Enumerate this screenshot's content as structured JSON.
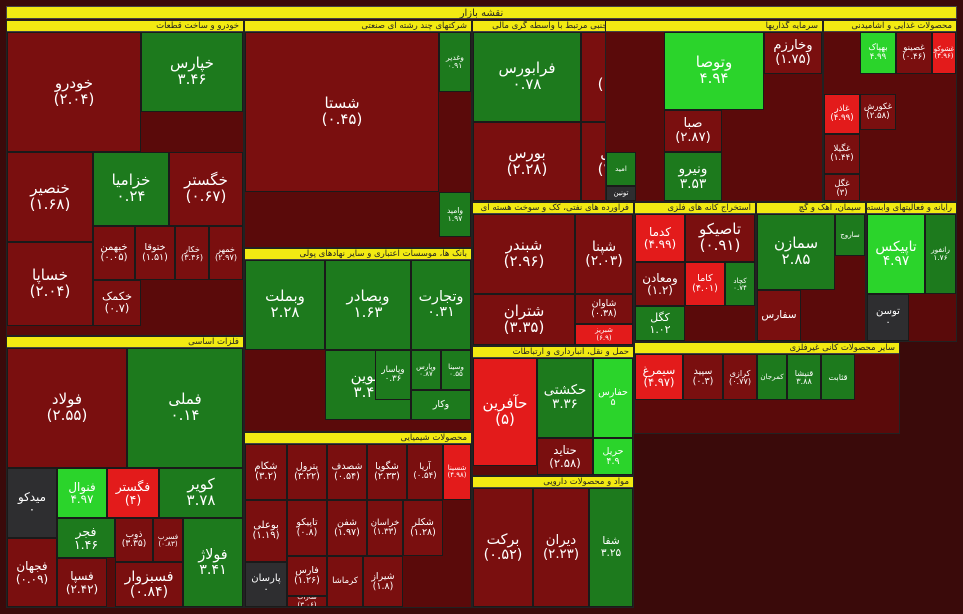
{
  "title": "نقشه بازار",
  "colors": {
    "strong_red": "#e31b1b",
    "dark_red": "#7a0f0f",
    "dark_green": "#1d7a1d",
    "bright_green": "#2bd42b",
    "neutral": "#2e2e30",
    "header": "#f2ea12"
  },
  "chart_data": {
    "type": "treemap",
    "sectors": [
      {
        "name": "خودرو و ساخت قطعات",
        "stocks": [
          {
            "name": "خودرو",
            "change": "(۲.۰۴)",
            "value": -2.04
          },
          {
            "name": "خپارس",
            "change": "۳.۴۶",
            "value": 3.46
          },
          {
            "name": "خنصیر",
            "change": "(۱.۶۸)",
            "value": -1.68
          },
          {
            "name": "خزامیا",
            "change": "۰.۲۴",
            "value": 0.24
          },
          {
            "name": "خگستر",
            "change": "(۰.۶۷)",
            "value": -0.67
          },
          {
            "name": "خساپا",
            "change": "(۲.۰۴)",
            "value": -2.04
          },
          {
            "name": "خبهمن",
            "change": "(۰.۰۵)",
            "value": -0.05
          },
          {
            "name": "ختوقا",
            "change": "(۱.۵۱)",
            "value": -1.51
          },
          {
            "name": "خکار",
            "change": "(۳.۴۶)",
            "value": -3.46
          },
          {
            "name": "خمهر",
            "change": "(۲.۹۷)",
            "value": -2.97
          },
          {
            "name": "خکمک",
            "change": "(۰.۷)",
            "value": -0.7
          }
        ]
      },
      {
        "name": "فلزات اساسی",
        "stocks": [
          {
            "name": "فولاد",
            "change": "(۲.۵۵)",
            "value": -2.55
          },
          {
            "name": "فملی",
            "change": "۰.۱۴",
            "value": 0.14
          },
          {
            "name": "میدکو",
            "change": "۰",
            "value": 0
          },
          {
            "name": "فنوال",
            "change": "۴.۹۷",
            "value": 4.97
          },
          {
            "name": "فگستر",
            "change": "(۴)",
            "value": -4
          },
          {
            "name": "کویر",
            "change": "۳.۷۸",
            "value": 3.78
          },
          {
            "name": "فجر",
            "change": "۱.۴۶",
            "value": 1.46
          },
          {
            "name": "فجهان",
            "change": "(۰.۰۹)",
            "value": -0.09
          },
          {
            "name": "ذوب",
            "change": "(۳.۳۵)",
            "value": -3.35
          },
          {
            "name": "فسرب",
            "change": "(۰.۸۳)",
            "value": -0.83
          },
          {
            "name": "فسپا",
            "change": "(۲.۴۲)",
            "value": -2.42
          },
          {
            "name": "فسبزوار",
            "change": "(۰.۸۴)",
            "value": -0.84
          },
          {
            "name": "فولاژ",
            "change": "۳.۴۱",
            "value": 3.41
          }
        ]
      },
      {
        "name": "شرکتهای چند رشته ای صنعتی",
        "stocks": [
          {
            "name": "شستا",
            "change": "(۰.۴۵)",
            "value": -0.45
          },
          {
            "name": "وغدیر",
            "change": "۰.۹۱",
            "value": 0.91
          },
          {
            "name": "وامید",
            "change": "۱.۹۷",
            "value": 1.97
          }
        ]
      },
      {
        "name": "بانک ها، موسسات اعتباری و سایر نهادهای پولی",
        "stocks": [
          {
            "name": "وبملت",
            "change": "۲.۲۸",
            "value": 2.28
          },
          {
            "name": "وبصادر",
            "change": "۱.۶۳",
            "value": 1.63
          },
          {
            "name": "وتجارت",
            "change": "۰.۳۱",
            "value": 0.31
          },
          {
            "name": "ونوین",
            "change": "۳.۴۱",
            "value": 3.41
          },
          {
            "name": "وپاسار",
            "change": "۰.۳۶",
            "value": 0.36
          },
          {
            "name": "وپارس",
            "change": "۰.۸۷",
            "value": 0.87
          },
          {
            "name": "وسینا",
            "change": "۰.۵۵",
            "value": 0.55
          },
          {
            "name": "وکار",
            "change": "",
            "value": 1.2
          },
          {
            "name": "وخاور",
            "change": "",
            "value": -0.9
          }
        ]
      },
      {
        "name": "محصولات شیمیایی",
        "stocks": [
          {
            "name": "شکام",
            "change": "(۳.۲)",
            "value": -3.2
          },
          {
            "name": "پترول",
            "change": "(۳.۲۲)",
            "value": -3.22
          },
          {
            "name": "شصدف",
            "change": "(۰.۵۴)",
            "value": -0.54
          },
          {
            "name": "شگویا",
            "change": "(۲.۳۳)",
            "value": -2.33
          },
          {
            "name": "آریا",
            "change": "(۰.۵۴)",
            "value": -0.54
          },
          {
            "name": "شسینا",
            "change": "(۴.۹۸)",
            "value": -4.98
          },
          {
            "name": "بوعلی",
            "change": "(۱.۱۹)",
            "value": -1.19
          },
          {
            "name": "تاپیکو",
            "change": "(۰.۸)",
            "value": -0.8
          },
          {
            "name": "شفن",
            "change": "(۱.۹۷)",
            "value": -1.97
          },
          {
            "name": "خراسان",
            "change": "(۱.۳۳)",
            "value": -1.33
          },
          {
            "name": "شکلر",
            "change": "(۱.۲۸)",
            "value": -1.28
          },
          {
            "name": "پارسان",
            "change": "۰",
            "value": 0
          },
          {
            "name": "فارس",
            "change": "(۱.۲۶)",
            "value": -1.26
          },
          {
            "name": "کرماشا",
            "change": "",
            "value": -1.1
          },
          {
            "name": "شاراک",
            "change": "(۳.۰۶)",
            "value": -3.06
          },
          {
            "name": "شیراز",
            "change": "(۱.۸)",
            "value": -1.8
          }
        ]
      },
      {
        "name": "فعالیت های جنبی مرتبط با واسطه گری مالی",
        "stocks": [
          {
            "name": "فرابورس",
            "change": "۰.۷۸",
            "value": 0.78
          },
          {
            "name": "کالا",
            "change": "(۱.۸۶)",
            "value": -1.86
          },
          {
            "name": "بورس",
            "change": "(۲.۲۸)",
            "value": -2.28
          },
          {
            "name": "انرژی",
            "change": "(۲.۰۳)",
            "value": -2.03
          }
        ]
      },
      {
        "name": "فراورده های نفتی، کک و سوخت هسته ای",
        "stocks": [
          {
            "name": "شبندر",
            "change": "(۲.۹۶)",
            "value": -2.96
          },
          {
            "name": "شپنا",
            "change": "(۲.۰۳)",
            "value": -2.03
          },
          {
            "name": "شتران",
            "change": "(۳.۳۵)",
            "value": -3.35
          },
          {
            "name": "شاوان",
            "change": "(۰.۳۸)",
            "value": -0.38
          },
          {
            "name": "شبریز",
            "change": "(۶.۹)",
            "value": -6.9
          }
        ]
      },
      {
        "name": "حمل و نقل، انبارداری و ارتباطات",
        "stocks": [
          {
            "name": "حآفرین",
            "change": "(۵)",
            "value": -5
          },
          {
            "name": "حکشتی",
            "change": "۳.۳۶",
            "value": 3.36
          },
          {
            "name": "حفارس",
            "change": "۵",
            "value": 5
          },
          {
            "name": "حتاید",
            "change": "(۲.۵۸)",
            "value": -2.58
          },
          {
            "name": "حریل",
            "change": "۴.۹",
            "value": 4.9
          }
        ]
      },
      {
        "name": "مواد و محصولات دارویی",
        "stocks": [
          {
            "name": "برکت",
            "change": "(۰.۵۲)",
            "value": -0.52
          },
          {
            "name": "دیران",
            "change": "(۲.۲۳)",
            "value": -2.23
          },
          {
            "name": "شفا",
            "change": "۳.۲۵",
            "value": 3.25
          }
        ]
      },
      {
        "name": "سرمایه گذاریها",
        "stocks": [
          {
            "name": "وتوصا",
            "change": "۴.۹۴",
            "value": 4.94
          },
          {
            "name": "وخارزم",
            "change": "(۱.۷۵)",
            "value": -1.75
          },
          {
            "name": "صبا",
            "change": "(۲.۸۷)",
            "value": -2.87
          },
          {
            "name": "ونیرو",
            "change": "۳.۵۳",
            "value": 3.53
          },
          {
            "name": "امید",
            "change": "",
            "value": 0.2
          },
          {
            "name": "تونین",
            "change": "",
            "value": 0
          }
        ]
      },
      {
        "name": "محصولات غذایی و آشامیدنی",
        "stocks": [
          {
            "name": "غشوکو",
            "change": "(۴.۹۶)",
            "value": -4.96
          },
          {
            "name": "غصینو",
            "change": "(۰.۴۶)",
            "value": -0.46
          },
          {
            "name": "بهپاک",
            "change": "۴.۹۹",
            "value": 4.99
          },
          {
            "name": "غاذر",
            "change": "(۴.۹۹)",
            "value": -4.99
          },
          {
            "name": "غکورش",
            "change": "(۲.۵۸)",
            "value": -2.58
          },
          {
            "name": "غگیلا",
            "change": "(۱.۴۴)",
            "value": -1.44
          },
          {
            "name": "غگل",
            "change": "(۳)",
            "value": -3
          }
        ]
      },
      {
        "name": "استخراج کانه های فلزی",
        "stocks": [
          {
            "name": "کدما",
            "change": "(۴.۹۹)",
            "value": -4.99
          },
          {
            "name": "تاصیکو",
            "change": "(۰.۹۱)",
            "value": -0.91
          },
          {
            "name": "ومعادن",
            "change": "(۱.۲)",
            "value": -1.2
          },
          {
            "name": "کاما",
            "change": "(۴.۰۱)",
            "value": -4.01
          },
          {
            "name": "کچاد",
            "change": "۰.۷۴",
            "value": 0.74
          },
          {
            "name": "کگل",
            "change": "۱.۰۲",
            "value": 1.02
          }
        ]
      },
      {
        "name": "سیمان، آهک و گچ",
        "stocks": [
          {
            "name": "سمازن",
            "change": "۲.۸۵",
            "value": 2.85
          },
          {
            "name": "سفارس",
            "change": "",
            "value": -1.5
          },
          {
            "name": "ساروج",
            "change": "",
            "value": 1.1
          }
        ]
      },
      {
        "name": "رایانه و فعالیتهای وابسته",
        "stocks": [
          {
            "name": "تاپیکس",
            "change": "۴.۹۷",
            "value": 4.97
          },
          {
            "name": "رانفور",
            "change": "۱.۷۶",
            "value": 1.76
          },
          {
            "name": "توسن",
            "change": "۰",
            "value": 0
          }
        ]
      },
      {
        "name": "سایر محصولات کانی غیرفلزی",
        "stocks": [
          {
            "name": "سیمرغ",
            "change": "(۴.۹۷)",
            "value": -4.97
          },
          {
            "name": "سپید",
            "change": "(۰.۳)",
            "value": -0.3
          },
          {
            "name": "کرازی",
            "change": "(۰.۷۷)",
            "value": -0.77
          },
          {
            "name": "کمرجان",
            "change": "",
            "value": 1.4
          },
          {
            "name": "قثابت",
            "change": "",
            "value": 1.8
          },
          {
            "name": "قنیشا",
            "change": "۳.۸۸",
            "value": 3.88
          }
        ]
      }
    ]
  }
}
